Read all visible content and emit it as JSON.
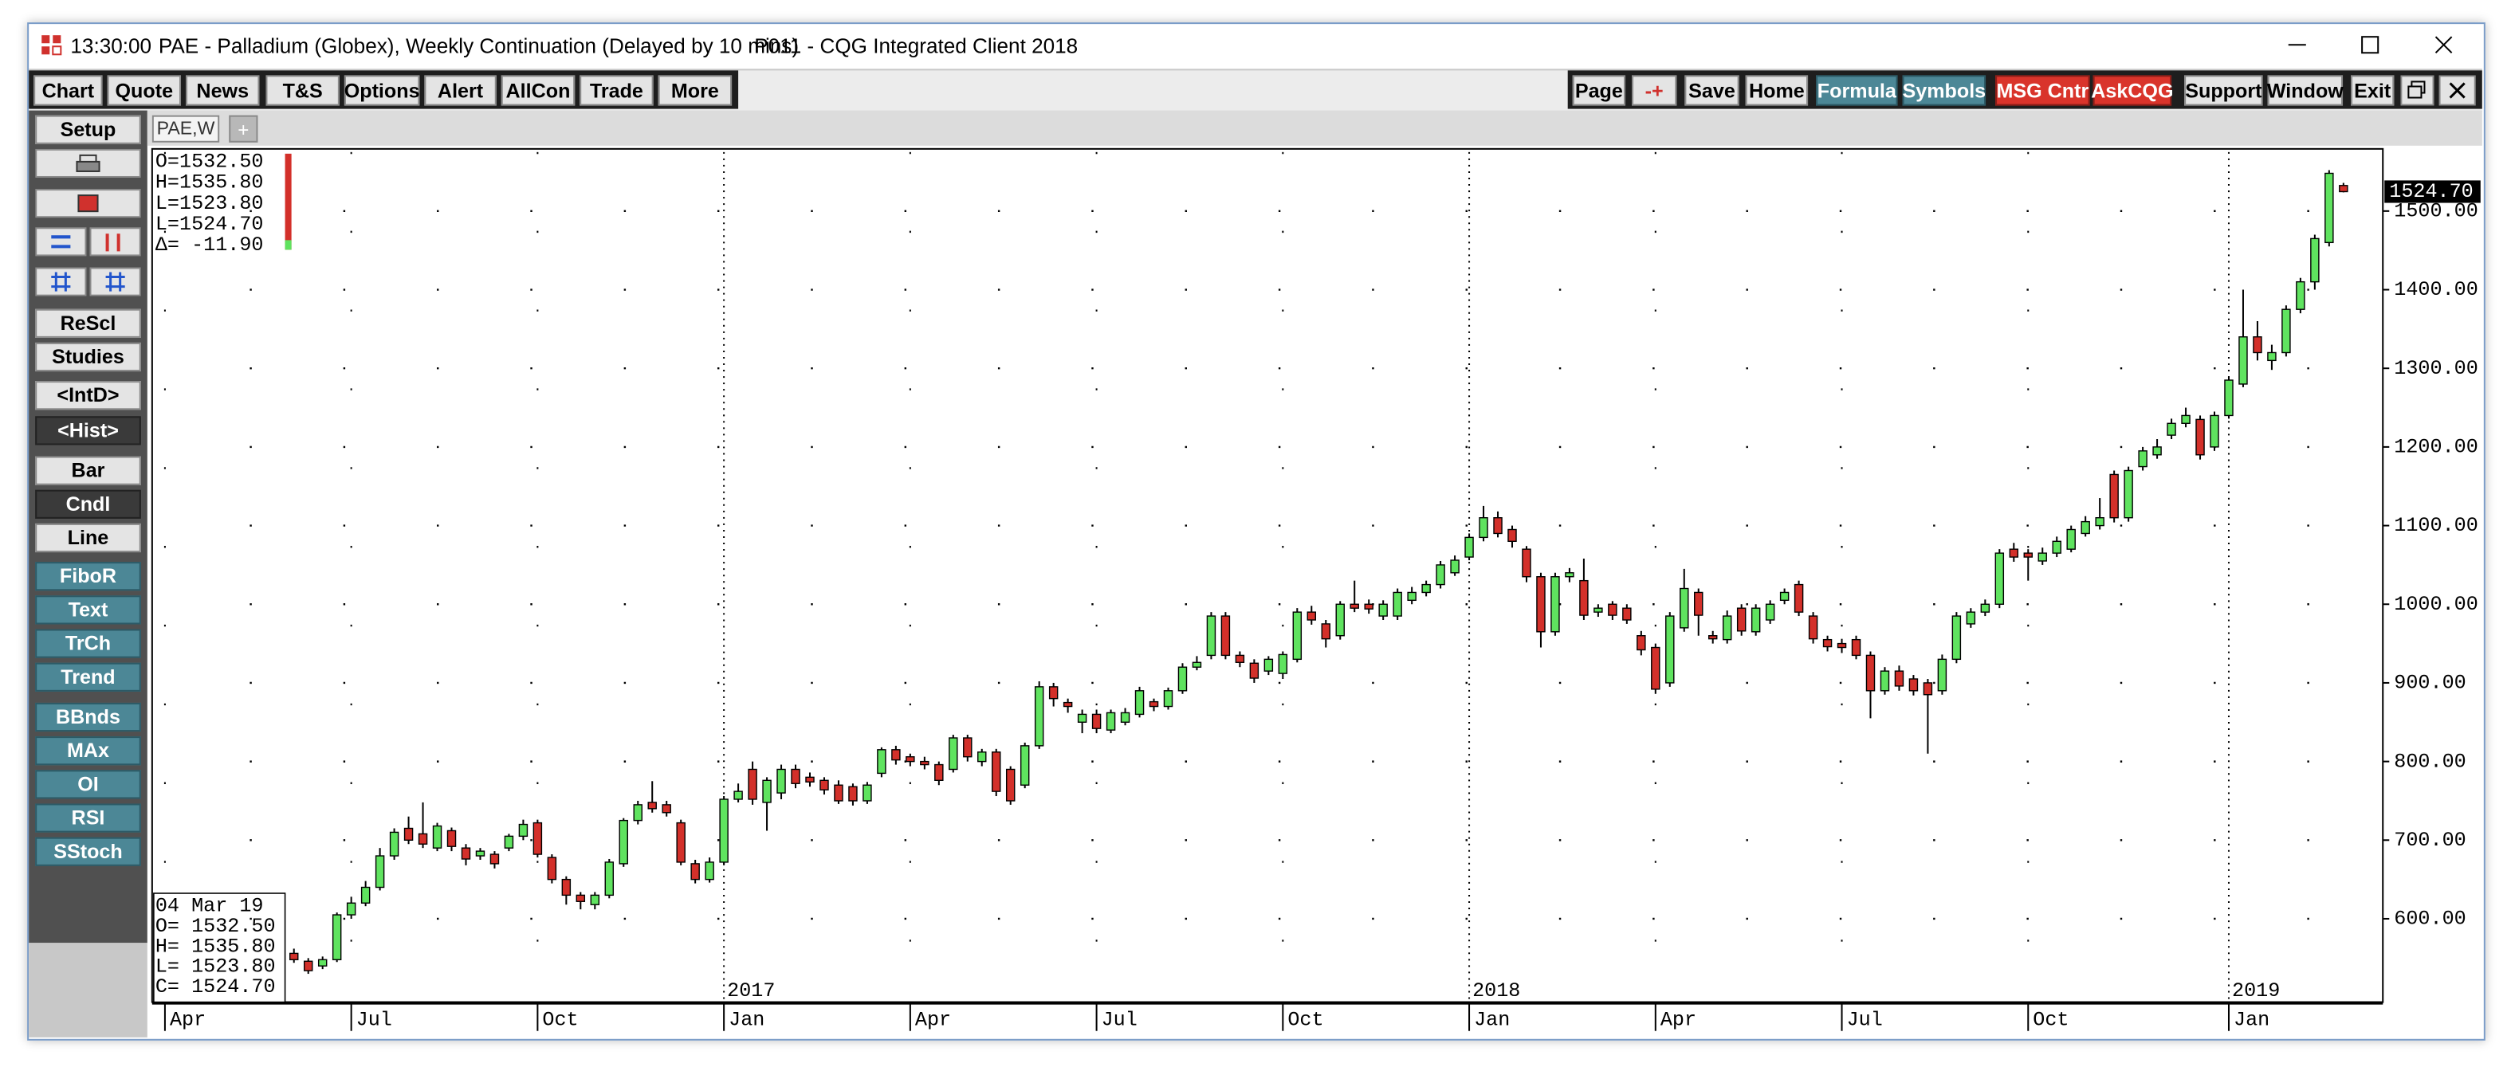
{
  "title_bar": {
    "time": "13:30:00",
    "title": "PAE - Palladium (Globex), Weekly Continuation (Delayed by 10 mins)",
    "app": "P011 - CQG Integrated Client 2018"
  },
  "toolbar": {
    "left": [
      "Chart",
      "Quote",
      "News",
      "T&S",
      "Options",
      "Alert",
      "AllCon",
      "Trade",
      "More"
    ],
    "right": [
      "Page",
      "-+",
      "Save",
      "Home",
      "Formula",
      "Symbols",
      "MSG Cntr",
      "AskCQG",
      "Support",
      "Window",
      "Exit"
    ]
  },
  "sidebar": [
    "Setup",
    "ReScl",
    "Studies",
    "<IntD>",
    "<Hist>",
    "Bar",
    "Cndl",
    "Line",
    "FiboR",
    "Text",
    "TrCh",
    "Trend",
    "BBnds",
    "MAx",
    "OI",
    "RSI",
    "SStoch"
  ],
  "tabs": [
    "PAE,W",
    "+"
  ],
  "chart_data": {
    "type": "candlestick",
    "categories": [
      "Apr",
      null,
      null,
      null,
      null,
      null,
      null,
      null,
      null,
      null,
      null,
      null,
      null,
      "Jul",
      null,
      null,
      null,
      null,
      null,
      null,
      null,
      null,
      null,
      null,
      null,
      null,
      "Oct",
      null,
      null,
      null,
      null,
      null,
      null,
      null,
      null,
      null,
      null,
      null,
      null,
      "Jan",
      null,
      null,
      null,
      null,
      null,
      null,
      null,
      null,
      null,
      null,
      null,
      null,
      "Apr",
      null,
      null,
      null,
      null,
      null,
      null,
      null,
      null,
      null,
      null,
      null,
      null,
      "Jul",
      null,
      null,
      null,
      null,
      null,
      null,
      null,
      null,
      null,
      null,
      null,
      null,
      "Oct",
      null,
      null,
      null,
      null,
      null,
      null,
      null,
      null,
      null,
      null,
      null,
      null,
      "Jan",
      null,
      null,
      null,
      null,
      null,
      null,
      null,
      null,
      null,
      null,
      null,
      null,
      "Apr",
      null,
      null,
      null,
      null,
      null,
      null,
      null,
      null,
      null,
      null,
      null,
      null,
      "Jul",
      null,
      null,
      null,
      null,
      null,
      null,
      null,
      null,
      null,
      null,
      null,
      null,
      "Oct",
      null,
      null,
      null,
      null,
      null,
      null,
      null,
      null,
      null,
      null,
      null,
      null,
      null,
      "Jan",
      null,
      null,
      null,
      null,
      null,
      null,
      null,
      null
    ],
    "year_labels": [
      null,
      null,
      null,
      null,
      null,
      null,
      null,
      null,
      null,
      null,
      null,
      null,
      null,
      null,
      null,
      null,
      null,
      null,
      null,
      null,
      null,
      null,
      null,
      null,
      null,
      null,
      null,
      null,
      null,
      null,
      null,
      null,
      null,
      null,
      null,
      null,
      null,
      null,
      null,
      "2017",
      null,
      null,
      null,
      null,
      null,
      null,
      null,
      null,
      null,
      null,
      null,
      null,
      null,
      null,
      null,
      null,
      null,
      null,
      null,
      null,
      null,
      null,
      null,
      null,
      null,
      null,
      null,
      null,
      null,
      null,
      null,
      null,
      null,
      null,
      null,
      null,
      null,
      null,
      null,
      null,
      null,
      null,
      null,
      null,
      null,
      null,
      null,
      null,
      null,
      null,
      null,
      "2018",
      null,
      null,
      null,
      null,
      null,
      null,
      null,
      null,
      null,
      null,
      null,
      null,
      null,
      null,
      null,
      null,
      null,
      null,
      null,
      null,
      null,
      null,
      null,
      null,
      null,
      null,
      null,
      null,
      null,
      null,
      null,
      null,
      null,
      null,
      null,
      null,
      null,
      null,
      null,
      null,
      null,
      null,
      null,
      null,
      null,
      null,
      null,
      null,
      null,
      null,
      null,
      null,
      "2019",
      null,
      null,
      null,
      null,
      null,
      null,
      null,
      null
    ],
    "open": [
      null,
      null,
      null,
      null,
      null,
      null,
      null,
      null,
      null,
      556,
      546,
      540,
      548,
      605,
      620,
      640,
      680,
      715,
      708,
      690,
      712,
      690,
      680,
      682,
      690,
      705,
      722,
      678,
      650,
      630,
      618,
      630,
      670,
      725,
      748,
      745,
      722,
      670,
      650,
      672,
      752,
      790,
      748,
      760,
      790,
      780,
      776,
      770,
      768,
      750,
      785,
      815,
      806,
      800,
      796,
      790,
      830,
      800,
      812,
      790,
      770,
      820,
      895,
      875,
      850,
      860,
      840,
      850,
      860,
      876,
      870,
      890,
      920,
      935,
      985,
      935,
      925,
      915,
      912,
      930,
      990,
      975,
      960,
      1000,
      1000,
      985,
      985,
      1005,
      1015,
      1025,
      1040,
      1060,
      1085,
      1110,
      1095,
      1070,
      1035,
      965,
      1035,
      1030,
      990,
      1000,
      995,
      960,
      945,
      900,
      970,
      1015,
      960,
      955,
      995,
      965,
      980,
      1005,
      1025,
      985,
      955,
      950,
      955,
      935,
      890,
      915,
      905,
      900,
      890,
      930,
      975,
      990,
      1000,
      1070,
      1065,
      1055,
      1065,
      1070,
      1090,
      1100,
      1165,
      1110,
      1175,
      1190,
      1215,
      1230,
      1235,
      1200,
      1240,
      1280,
      1340,
      1310,
      1320,
      1375,
      1410,
      1460,
      1532.5
    ],
    "high": [
      null,
      null,
      null,
      null,
      null,
      null,
      null,
      null,
      null,
      562,
      550,
      552,
      608,
      628,
      648,
      690,
      715,
      730,
      748,
      722,
      716,
      695,
      690,
      686,
      708,
      726,
      726,
      682,
      654,
      634,
      634,
      676,
      728,
      750,
      775,
      750,
      726,
      675,
      678,
      756,
      772,
      800,
      780,
      796,
      796,
      786,
      780,
      776,
      772,
      774,
      818,
      820,
      810,
      806,
      800,
      834,
      834,
      816,
      816,
      794,
      824,
      902,
      900,
      880,
      866,
      866,
      866,
      868,
      895,
      880,
      894,
      925,
      934,
      990,
      990,
      940,
      930,
      934,
      940,
      995,
      998,
      980,
      1004,
      1030,
      1006,
      1005,
      1020,
      1022,
      1030,
      1055,
      1062,
      1090,
      1125,
      1118,
      1100,
      1074,
      1040,
      1040,
      1046,
      1058,
      1000,
      1004,
      1000,
      966,
      950,
      990,
      1045,
      1020,
      966,
      992,
      1000,
      1000,
      1005,
      1020,
      1030,
      990,
      960,
      956,
      960,
      940,
      920,
      922,
      910,
      905,
      936,
      990,
      995,
      1006,
      1070,
      1078,
      1070,
      1072,
      1086,
      1100,
      1112,
      1135,
      1170,
      1175,
      1200,
      1210,
      1236,
      1250,
      1240,
      1245,
      1290,
      1400,
      1360,
      1330,
      1380,
      1415,
      1470,
      1552,
      1535.8
    ],
    "low": [
      null,
      null,
      null,
      null,
      null,
      null,
      null,
      null,
      null,
      544,
      530,
      536,
      545,
      600,
      616,
      636,
      675,
      695,
      690,
      686,
      686,
      668,
      675,
      664,
      686,
      700,
      678,
      645,
      618,
      612,
      612,
      626,
      666,
      720,
      735,
      730,
      668,
      645,
      646,
      668,
      748,
      745,
      712,
      752,
      766,
      768,
      758,
      746,
      744,
      746,
      780,
      796,
      794,
      790,
      770,
      786,
      800,
      794,
      756,
      745,
      766,
      816,
      870,
      862,
      836,
      836,
      836,
      846,
      856,
      864,
      866,
      886,
      916,
      930,
      930,
      920,
      900,
      910,
      905,
      926,
      974,
      945,
      955,
      990,
      988,
      980,
      980,
      1000,
      1010,
      1020,
      1036,
      1056,
      1080,
      1085,
      1072,
      1028,
      945,
      960,
      1028,
      980,
      984,
      980,
      975,
      935,
      886,
      895,
      965,
      960,
      950,
      950,
      960,
      960,
      975,
      1000,
      985,
      950,
      940,
      938,
      930,
      855,
      885,
      890,
      884,
      810,
      885,
      925,
      970,
      985,
      995,
      1054,
      1030,
      1050,
      1060,
      1066,
      1086,
      1095,
      1104,
      1105,
      1170,
      1185,
      1210,
      1225,
      1184,
      1195,
      1236,
      1276,
      1310,
      1298,
      1315,
      1370,
      1400,
      1455,
      1523.8
    ],
    "close": [
      null,
      null,
      null,
      null,
      null,
      null,
      null,
      null,
      null,
      548,
      534,
      548,
      605,
      620,
      640,
      680,
      710,
      700,
      695,
      718,
      692,
      676,
      686,
      670,
      705,
      720,
      682,
      650,
      630,
      622,
      630,
      672,
      725,
      745,
      740,
      735,
      672,
      650,
      672,
      752,
      762,
      752,
      776,
      790,
      772,
      774,
      764,
      750,
      750,
      770,
      815,
      802,
      800,
      796,
      776,
      830,
      806,
      812,
      762,
      750,
      820,
      895,
      880,
      870,
      860,
      842,
      862,
      862,
      890,
      870,
      890,
      920,
      926,
      985,
      935,
      926,
      906,
      930,
      936,
      990,
      980,
      956,
      1000,
      995,
      994,
      1000,
      1015,
      1015,
      1025,
      1050,
      1056,
      1085,
      1110,
      1090,
      1080,
      1035,
      965,
      1035,
      1040,
      986,
      995,
      986,
      980,
      942,
      892,
      985,
      1020,
      986,
      956,
      985,
      966,
      995,
      1000,
      1015,
      990,
      956,
      946,
      945,
      935,
      890,
      915,
      896,
      890,
      885,
      930,
      985,
      990,
      1000,
      1065,
      1060,
      1060,
      1065,
      1080,
      1095,
      1105,
      1110,
      1110,
      1170,
      1195,
      1200,
      1230,
      1240,
      1190,
      1240,
      1285,
      1340,
      1320,
      1320,
      1375,
      1410,
      1465,
      1548,
      1524.7
    ],
    "up_color": "#5fe35f",
    "down_color": "#d3302a",
    "ylim": [
      494,
      1575
    ],
    "yticks": [
      {
        "value": 600,
        "label": "600.00"
      },
      {
        "value": 700,
        "label": "700.00"
      },
      {
        "value": 800,
        "label": "800.00"
      },
      {
        "value": 900,
        "label": "900.00"
      },
      {
        "value": 1000,
        "label": "1000.00"
      },
      {
        "value": 1100,
        "label": "1100.00"
      },
      {
        "value": 1200,
        "label": "1200.00"
      },
      {
        "value": 1300,
        "label": "1300.00"
      },
      {
        "value": 1400,
        "label": "1400.00"
      },
      {
        "value": 1500,
        "label": "1500.00"
      }
    ],
    "grid": true,
    "last_price_label": "1524.70",
    "ohlc_box": [
      "O=1532.50",
      "H=1535.80",
      "L=1523.80",
      "L=1524.70",
      "Δ= -11.90"
    ],
    "cursor_box": [
      "04 Mar 19",
      "O= 1532.50",
      "H= 1535.80",
      "L= 1523.80",
      "C= 1524.70"
    ]
  }
}
